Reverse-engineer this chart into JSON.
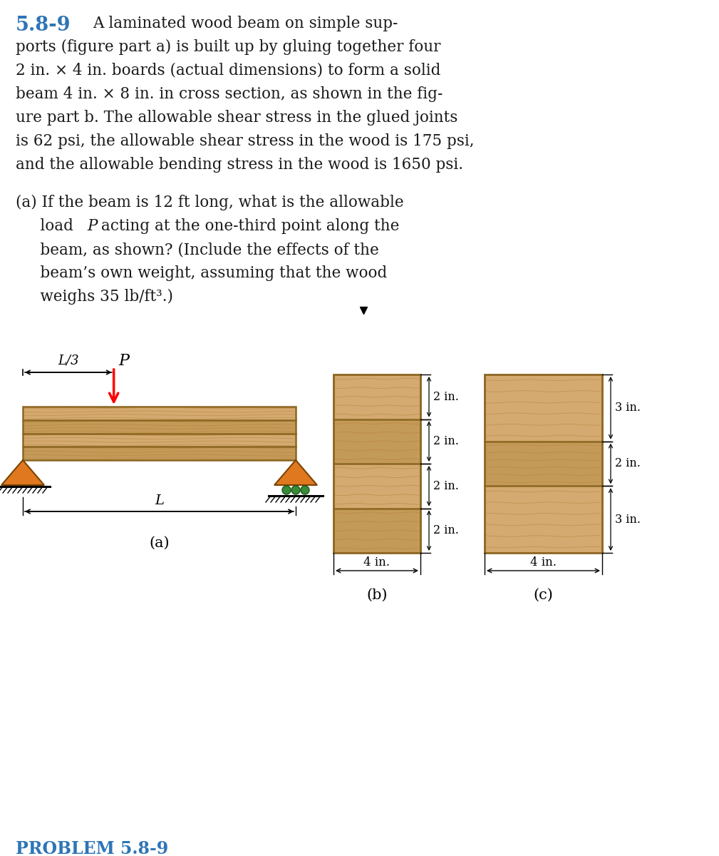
{
  "title_number": "5.8-9",
  "title_color": "#2E75B6",
  "bg_color": "#ffffff",
  "text_color": "#1a1a1a",
  "wood_light": "#D4AA70",
  "wood_mid": "#C49A58",
  "wood_dark_line": "#8B6520",
  "support_orange": "#E07820",
  "roller_green": "#3a8a3a",
  "grain_line": "#B8803A",
  "para1_lines": [
    "A laminated wood beam on simple sup-",
    "ports (figure part a) is built up by gluing together four",
    "2 in. × 4 in. boards (actual dimensions) to form a solid",
    "beam 4 in. × 8 in. in cross section, as shown in the fig-",
    "ure part b. The allowable shear stress in the glued joints",
    "is 62 psi, the allowable shear stress in the wood is 175 psi,",
    "and the allowable bending stress in the wood is 1650 psi."
  ],
  "parta_line1": "(a) If the beam is 12 ft long, what is the allowable",
  "parta_line2a": "     load ",
  "parta_line2b": "P",
  "parta_line2c": " acting at the one-third point along the",
  "parta_line3": "     beam, as shown? (Include the effects of the",
  "parta_line4": "     beam’s own weight, assuming that the wood",
  "parta_line5": "     weighs 35 lb/ft³.)",
  "label_a": "(a)",
  "label_b": "(b)",
  "label_c": "(c)",
  "problem_label": "PROBLEM 5.8-9",
  "fig_fontsize": 15.5,
  "title_fontsize": 19.5
}
